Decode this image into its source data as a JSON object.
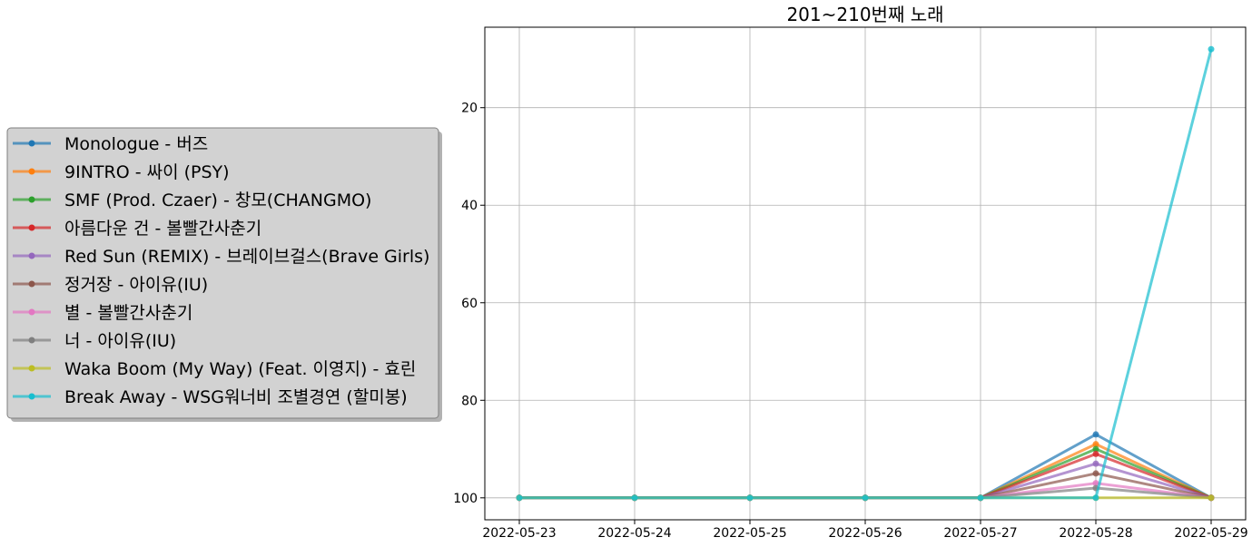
{
  "chart_data": {
    "type": "line",
    "title": "201~210번째 노래",
    "xlabel": "",
    "ylabel": "",
    "x": [
      "2022-05-23",
      "2022-05-24",
      "2022-05-25",
      "2022-05-26",
      "2022-05-27",
      "2022-05-28",
      "2022-05-29"
    ],
    "y_inverted": true,
    "ylim": [
      104.5,
      3.5
    ],
    "yticks": [
      20,
      40,
      60,
      80,
      100
    ],
    "grid": true,
    "legend_position": "left",
    "series": [
      {
        "name": "Monologue - 버즈",
        "color": "#1f77b4",
        "values": [
          100,
          100,
          100,
          100,
          100,
          87,
          100
        ]
      },
      {
        "name": "9INTRO - 싸이 (PSY)",
        "color": "#ff7f0e",
        "values": [
          100,
          100,
          100,
          100,
          100,
          89,
          100
        ]
      },
      {
        "name": "SMF (Prod. Czaer) - 창모(CHANGMO)",
        "color": "#2ca02c",
        "values": [
          100,
          100,
          100,
          100,
          100,
          90,
          100
        ]
      },
      {
        "name": "아름다운 건 - 볼빨간사춘기",
        "color": "#d62728",
        "values": [
          100,
          100,
          100,
          100,
          100,
          91,
          100
        ]
      },
      {
        "name": "Red Sun (REMIX) - 브레이브걸스(Brave Girls)",
        "color": "#9467bd",
        "values": [
          100,
          100,
          100,
          100,
          100,
          93,
          100
        ]
      },
      {
        "name": "정거장 - 아이유(IU)",
        "color": "#8c564b",
        "values": [
          100,
          100,
          100,
          100,
          100,
          95,
          100
        ]
      },
      {
        "name": "별 - 볼빨간사춘기",
        "color": "#e377c2",
        "values": [
          100,
          100,
          100,
          100,
          100,
          97,
          100
        ]
      },
      {
        "name": "너 - 아이유(IU)",
        "color": "#7f7f7f",
        "values": [
          100,
          100,
          100,
          100,
          100,
          98,
          100
        ]
      },
      {
        "name": "Waka Boom (My Way) (Feat. 이영지) - 효린",
        "color": "#bcbd22",
        "values": [
          100,
          100,
          100,
          100,
          100,
          100,
          100
        ]
      },
      {
        "name": "Break Away - WSG워너비 조별경연 (할미봉)",
        "color": "#17becf",
        "values": [
          100,
          100,
          100,
          100,
          100,
          100,
          8
        ]
      }
    ]
  }
}
